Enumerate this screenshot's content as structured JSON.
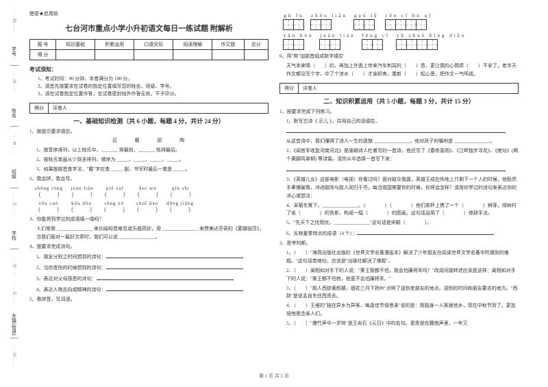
{
  "side": {
    "l1": "学号",
    "l2": "姓名",
    "l3": "班级",
    "l4": "学校",
    "l5": "乡镇(街道)",
    "d1": "---题---",
    "d2": "---答---",
    "d3": "---本---",
    "d4": "---内---",
    "d5": "---线---",
    "d6": "---封---",
    "d7": "---密---"
  },
  "header_tag": "绝密★启用前",
  "title": "七台河市重点小学小升初语文每日一练试题 附解析",
  "score_cols": [
    "题 号",
    "知识基础",
    "积累运用",
    "口语交际",
    "阅读理解",
    "作文题",
    "总分"
  ],
  "score_row": "得 分",
  "notice_title": "考试须知：",
  "notice_items": [
    "1、考试时间：90 分钟，本卷满分为 100 分。",
    "2、请首先按要求在试卷的指定位置填写您的姓名、班级、学号。",
    "3、请在试卷指定位置作答，在试卷密封线外作答无效，不予评分。"
  ],
  "bar_score": "得分",
  "bar_reviewer": "评卷人",
  "section1_title": "一、基础知识检测（共 6 小题，每题 4 分，共计 24 分）",
  "q1_1": "1、按提示要求填空。",
  "q1_1_chars": "吕   戴   邱   陶",
  "q1_1_a": "1、按音序排列，以上姓氏中，_______ 排最前，_______ 姓排最后。",
  "q1_1_b": "2、按姓氏笔画从少到多排列，顺序为 _____、_____、_____、_____。",
  "q1_1_c": "3、如果按部首查字法，\"戴\"字应查 _____ 部，书写时最后一笔是 _____。",
  "q1_2": "2、我会拼，我会写。",
  "q1_2_py1": [
    "shēng róng",
    "juàn liàn",
    "piě zuǐ",
    "kuí wú",
    "qīn shì"
  ],
  "q1_2_py2": [
    "zǒu cuò",
    "kǒu dōu",
    "rǒng yú",
    "zhuī dào",
    "dōng jiāng"
  ],
  "q1_3": "3、你能将到学过的成语填一填吗？",
  "q1_3_a": "人们常用 _______________ 来比喻知音难觅或乐曲高妙，用 _______________ 来赞美达芬奇的《蒙娜丽莎》，当我们面对一篇好文章时，我们可以说 _______________。",
  "q1_4": "4、按要求完成诗句。",
  "q1_4_a": "1、朋友分别之时间想到的诗句：",
  "q1_4_b": "2、当你悲伤的时候想到的诗句：",
  "q1_4_c": "3、表达对父母感恩的诗句：",
  "q1_4_d": "4、表达人物志向或精神的诗句：",
  "q1_5": "5、看拼音，写词语。",
  "char_groups": [
    {
      "py": "gū fù",
      "n": 2
    },
    {
      "py": "zhōu liǎn",
      "n": 2
    },
    {
      "py": "guò lǜ",
      "n": 2
    },
    {
      "py": "cēn cī bù qǐ",
      "n": 4
    }
  ],
  "char_groups2": [
    {
      "py": "yān hóu",
      "n": 2
    },
    {
      "py": "juàn liàn",
      "n": 2
    },
    {
      "py": "fěng cī",
      "n": 2
    },
    {
      "py": "yǔ zhuó bīng diāo",
      "n": 4
    }
  ],
  "q1_6": "6、用\"爽\"加部首组成新字填空",
  "q1_6_a": "天气本来晴（　　）的，再加上外面上传来汽车刺耳的（　　）音，更让我的心情烦（　　）不安了。老半天作文都没写个字，中了个凉水（　　）才身舒爽，重新（　　）起心思，把作文一气呵成。",
  "section2_title": "二、知识积累运用（共 5 小题，每题 3 分，共计 15 分）",
  "q2_1": "1、按要求完成下列练习。",
  "q2_1_a": "1、默写古诗《 示儿 》，并用自己的话填空。",
  "q2_1_b": "从这首诗中，我们懂得了诗人一生的遗憾 _______________，他对孩子的嘱咐是 _______________。",
  "q2_1_c": "2、《闻官军收复河南河北》是唐朝诗人杜甫写的一首诗，他还写了《春夜喜雨》、《江畔独步寻花》、《绝句》(两个黄鹂鸣翠柳) 等诗篇，请你从中选择一首写下来：",
  "q2_1_d": "3、《英雄儿女》这部电影（电视）你看过吗？面对敌众我寡，英雄王成在阵地上只剩下一个人的时候，他毅然手拿爆破筒，冲进敌阵与敌人同归于尽。每当祖国需要你的时候，你将会怎样？请用你学过的诗句来表达你的决心或想法：",
  "q2_1_e": "4、采菊东篱下，_______________。（　　　　）（　　　　）他们茶杯上镌了一个（　　　　）辨芽，绿树村了省（　　　　）的色影，构成一幅（　　　　）的图画，这句话运用了（　　　　）修辞手法。",
  "q2_1_f": "5、\"先天下之忧而忧，_______________\"这句话是宋朝（　　　　）。",
  "q2_1_g": "6、反映夏季特点的成语（4 个）：",
  "q2_2": "2、思考判断。",
  "q2_2_a": "1、（　　）\"海燕出版社出版的《世界文学名著漫画本》解决了少年朋友在阅读世界文学名著中所遇到的难题。\"这句话若缩句，应该是\"出版社解决了难题\"。",
  "q2_2_b": "2、（　　）蔺相如对手下的人说：\"秦王我都不怕，我会怕廉将军吗？\"改成间接转述应该是这样：蔺相如对手下的人说：\"秦王都不怕他，他更不会怕廉将军。\"",
  "q2_2_c": "3、（　　）\"故人西辞黄鹤楼，烟花三月下扬州\"点明了送别老朋友的地点。送别的时间和朋友要去的地方。\"西辞\"是说孟自东往西而去。",
  "q2_2_d": "4、（　　）王维的\"独在异乡为异客，每逢佳节倍思亲\"说的是：我独身一人客居他乡，现在中秋节到了，更加倍地思念亲人们。",
  "q2_2_e": "5、（　　）\"爆竹声中一岁除\"是王安石《元日》中的名句。意思是在鞭炮声里，一年又",
  "footer": "第 1 页 共 5 页"
}
